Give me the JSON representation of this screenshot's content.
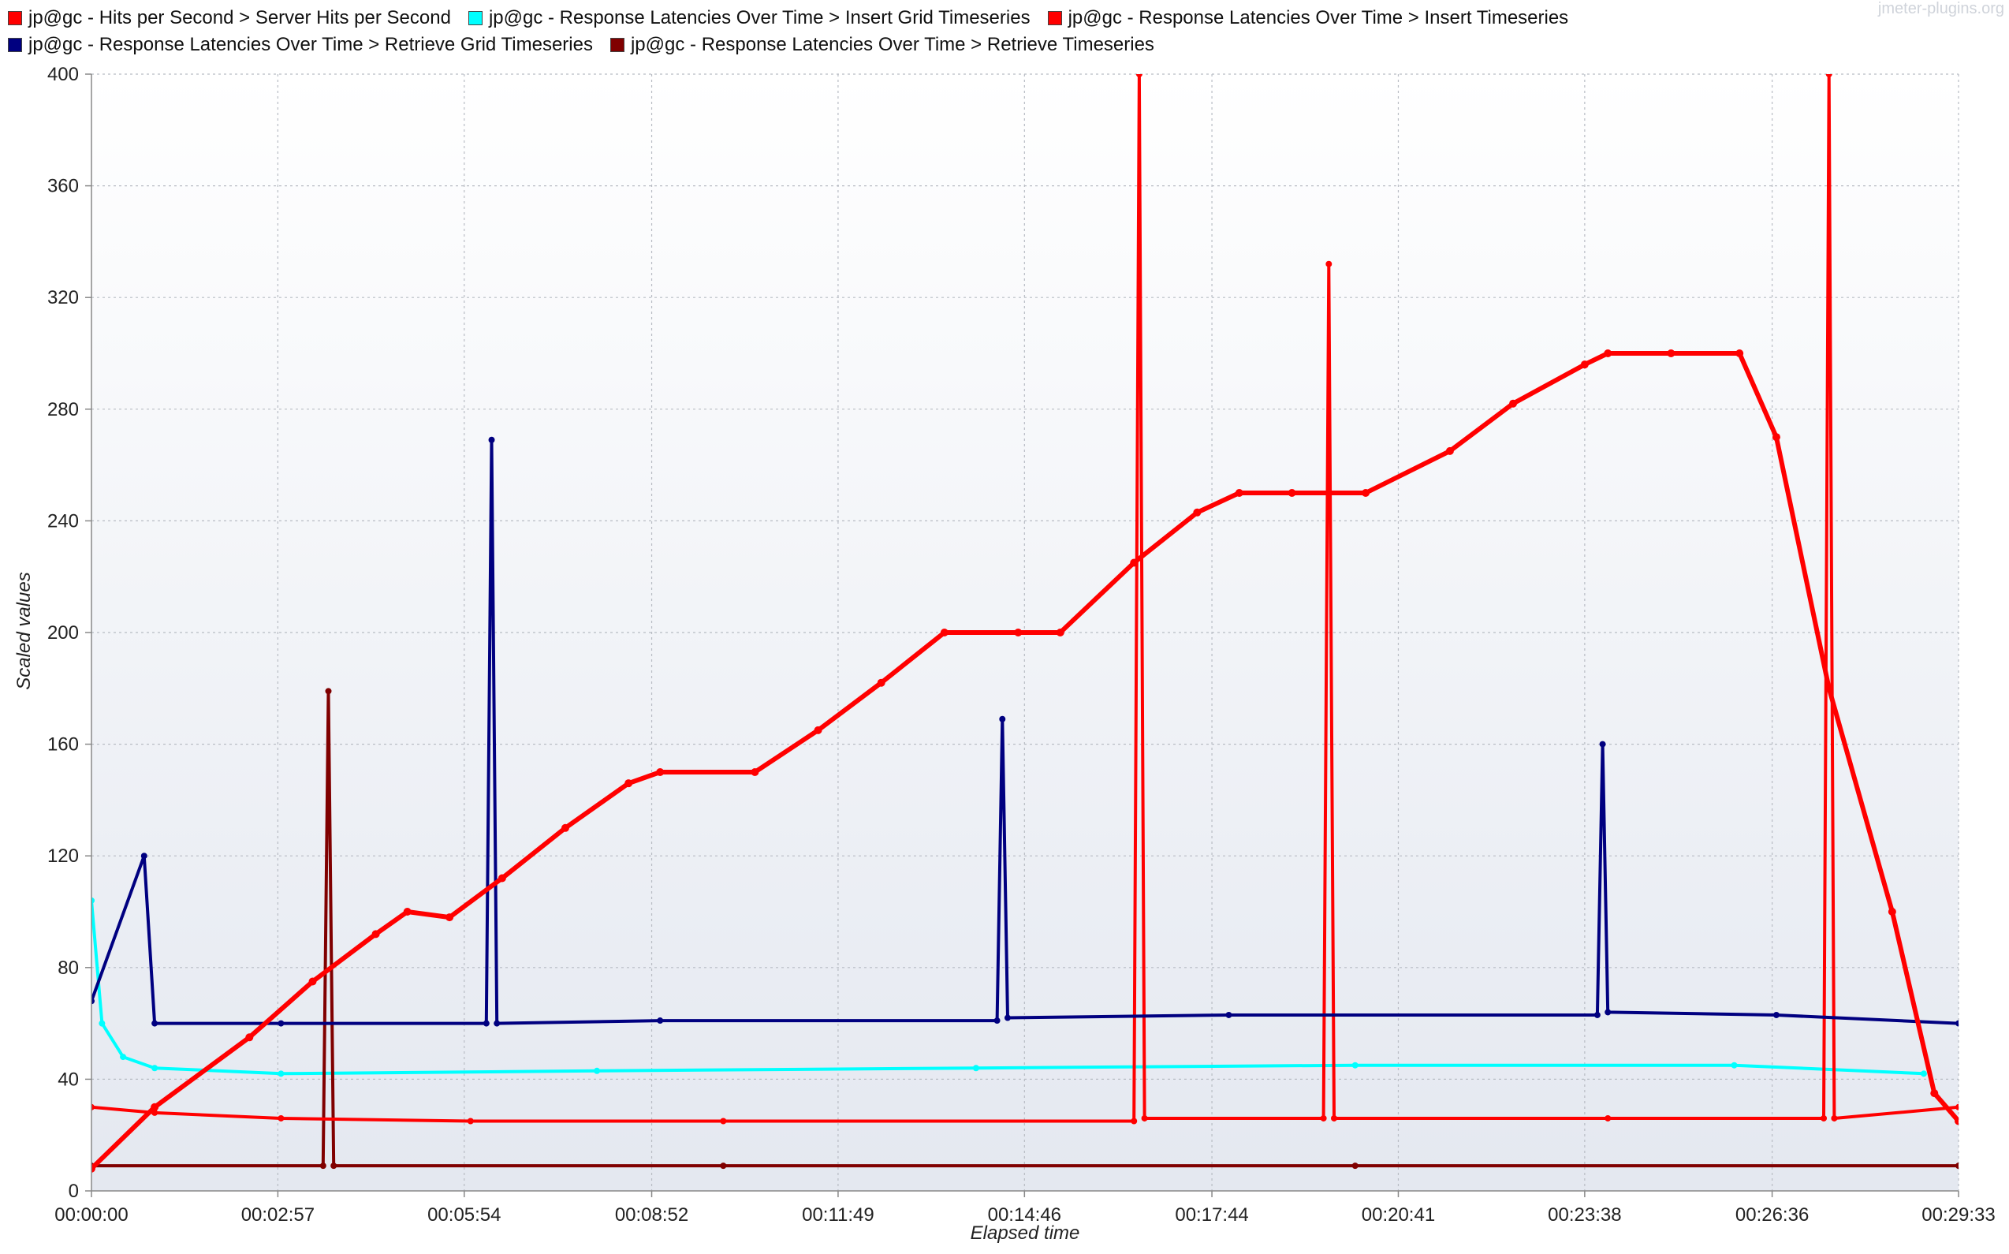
{
  "watermark": "jmeter-plugins.org",
  "legend": [
    {
      "label": "jp@gc - Hits per Second > Server Hits per Second",
      "color": "#ff0000"
    },
    {
      "label": "jp@gc - Response Latencies Over Time > Insert Grid Timeseries",
      "color": "#00ffff"
    },
    {
      "label": "jp@gc - Response Latencies Over Time > Insert Timeseries",
      "color": "#ff0000"
    },
    {
      "label": "jp@gc - Response Latencies Over Time > Retrieve Grid Timeseries",
      "color": "#000080"
    },
    {
      "label": "jp@gc - Response Latencies Over Time > Retrieve Timeseries",
      "color": "#800000"
    }
  ],
  "chart_data": {
    "type": "line",
    "title": "",
    "xlabel": "Elapsed time",
    "ylabel": "Scaled values",
    "xlim": [
      "00:00:00",
      "00:29:33"
    ],
    "ylim": [
      0,
      400
    ],
    "xticks": [
      "00:00:00",
      "00:02:57",
      "00:05:54",
      "00:08:52",
      "00:11:49",
      "00:14:46",
      "00:17:44",
      "00:20:41",
      "00:23:38",
      "00:26:36",
      "00:29:33"
    ],
    "yticks": [
      0,
      40,
      80,
      120,
      160,
      200,
      240,
      280,
      320,
      360,
      400
    ],
    "grid": true,
    "legend_position": "top",
    "series": [
      {
        "name": "jp@gc - Hits per Second > Server Hits per Second",
        "color": "#ff0000",
        "x": [
          "00:00:00",
          "00:01:00",
          "00:02:30",
          "00:03:30",
          "00:04:30",
          "00:05:00",
          "00:05:40",
          "00:06:30",
          "00:07:30",
          "00:08:30",
          "00:09:00",
          "00:10:30",
          "00:11:30",
          "00:12:30",
          "00:13:30",
          "00:14:40",
          "00:15:20",
          "00:16:30",
          "00:17:30",
          "00:18:10",
          "00:19:00",
          "00:20:10",
          "00:21:30",
          "00:22:30",
          "00:23:38",
          "00:24:00",
          "00:25:00",
          "00:26:05",
          "00:26:40",
          "00:27:30",
          "00:28:30",
          "00:29:10",
          "00:29:33"
        ],
        "y": [
          8,
          30,
          55,
          75,
          92,
          100,
          98,
          112,
          130,
          146,
          150,
          150,
          165,
          182,
          200,
          200,
          200,
          225,
          243,
          250,
          250,
          250,
          265,
          282,
          296,
          300,
          300,
          300,
          270,
          180,
          100,
          35,
          25
        ]
      },
      {
        "name": "jp@gc - Response Latencies Over Time > Insert Grid Timeseries",
        "color": "#00ffff",
        "x": [
          "00:00:00",
          "00:00:10",
          "00:00:30",
          "00:01:00",
          "00:03:00",
          "00:08:00",
          "00:14:00",
          "00:20:00",
          "00:26:00",
          "00:29:00"
        ],
        "y": [
          104,
          60,
          48,
          44,
          42,
          43,
          44,
          45,
          45,
          42
        ]
      },
      {
        "name": "jp@gc - Response Latencies Over Time > Insert Timeseries",
        "color": "#ff0000",
        "x": [
          "00:00:00",
          "00:01:00",
          "00:03:00",
          "00:06:00",
          "00:10:00",
          "00:16:30",
          "00:16:35",
          "00:16:40",
          "00:19:30",
          "00:19:35",
          "00:19:40",
          "00:24:00",
          "00:27:25",
          "00:27:30",
          "00:27:35",
          "00:29:33"
        ],
        "y": [
          30,
          28,
          26,
          25,
          25,
          25,
          400,
          26,
          26,
          332,
          26,
          26,
          26,
          400,
          26,
          30
        ]
      },
      {
        "name": "jp@gc - Response Latencies Over Time > Retrieve Grid Timeseries",
        "color": "#000080",
        "x": [
          "00:00:00",
          "00:00:50",
          "00:01:00",
          "00:03:00",
          "00:06:15",
          "00:06:20",
          "00:06:25",
          "00:09:00",
          "00:14:20",
          "00:14:25",
          "00:14:30",
          "00:18:00",
          "00:23:50",
          "00:23:55",
          "00:24:00",
          "00:26:40",
          "00:29:33"
        ],
        "y": [
          68,
          120,
          60,
          60,
          60,
          269,
          60,
          61,
          61,
          169,
          62,
          63,
          63,
          160,
          64,
          63,
          60
        ]
      },
      {
        "name": "jp@gc - Response Latencies Over Time > Retrieve Timeseries",
        "color": "#800000",
        "x": [
          "00:00:00",
          "00:03:40",
          "00:03:45",
          "00:03:50",
          "00:10:00",
          "00:20:00",
          "00:29:33"
        ],
        "y": [
          9,
          9,
          179,
          9,
          9,
          9,
          9
        ]
      }
    ]
  }
}
